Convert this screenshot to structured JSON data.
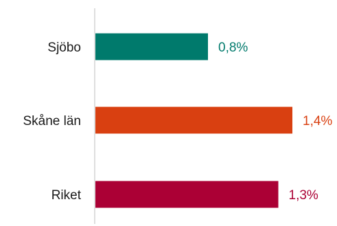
{
  "chart_data": {
    "type": "bar",
    "orientation": "horizontal",
    "categories": [
      "Sjöbo",
      "Skåne län",
      "Riket"
    ],
    "values": [
      0.8,
      1.4,
      1.3
    ],
    "value_labels": [
      "0,8%",
      "1,4%",
      "1,3%"
    ],
    "colors": [
      "#007a6c",
      "#d94011",
      "#ab0035"
    ],
    "title": "",
    "xlabel": "",
    "ylabel": "",
    "xlim": [
      0,
      1.4
    ],
    "grid": false,
    "legend": "none"
  }
}
